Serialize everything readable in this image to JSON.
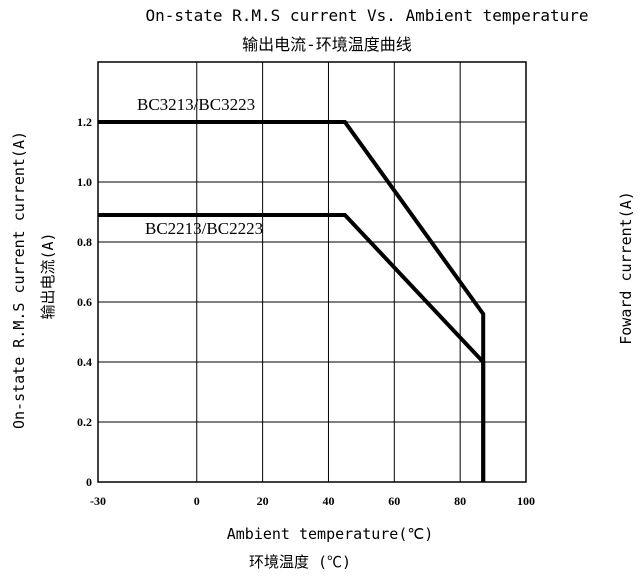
{
  "chart_data": {
    "type": "line",
    "title": "On-state R.M.S current Vs. Ambient temperature",
    "subtitle": "输出电流-环境温度曲线",
    "xlabel": "Ambient temperature(℃)",
    "xlabel_cn": "环境温度 (℃)",
    "ylabel": "On-state R.M.S current current(A)",
    "ylabel_cn": "输出电流(A)",
    "side_label": "Foward current(A)",
    "xlim": [
      -30,
      100
    ],
    "ylim": [
      0,
      1.4
    ],
    "xticks": [
      -30,
      0,
      20,
      40,
      60,
      80,
      100
    ],
    "xtick_labels": [
      "-30",
      "0",
      "20",
      "40",
      "60",
      "80",
      "100"
    ],
    "yticks": [
      0,
      0.2,
      0.4,
      0.6,
      0.8,
      1.0,
      1.2
    ],
    "ytick_labels": [
      "0",
      "0.2",
      "0.4",
      "0.6",
      "0.8",
      "1.0",
      "1.2"
    ],
    "grid": true,
    "series": [
      {
        "name": "BC3213/BC3223",
        "x": [
          -30,
          45,
          87,
          87
        ],
        "y": [
          1.2,
          1.2,
          0.56,
          0
        ]
      },
      {
        "name": "BC2213/BC2223",
        "x": [
          -30,
          45,
          87,
          87
        ],
        "y": [
          0.89,
          0.89,
          0.4,
          0
        ]
      }
    ],
    "line_color": "#000000"
  }
}
